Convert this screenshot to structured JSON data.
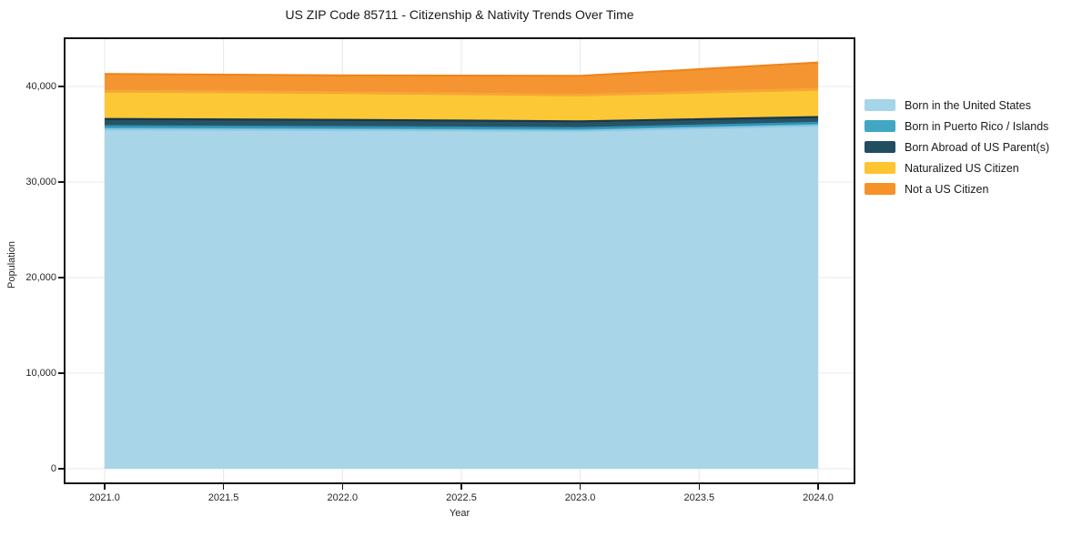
{
  "title": "US ZIP Code 85711 - Citizenship & Nativity Trends Over Time",
  "chart_data": {
    "type": "area",
    "stacked": true,
    "title": "US ZIP Code 85711 - Citizenship & Nativity Trends Over Time",
    "xlabel": "Year",
    "ylabel": "Population",
    "x": [
      2021,
      2022,
      2023,
      2024
    ],
    "series": [
      {
        "name": "Born in the United States",
        "values": [
          35500,
          35450,
          35350,
          35900
        ],
        "color": "#a6d4e8",
        "edge_color": "#8fc8e2"
      },
      {
        "name": "Born in Puerto Rico / Islands",
        "values": [
          350,
          300,
          300,
          300
        ],
        "color": "#41a6c4",
        "edge_color": "#2e93b5"
      },
      {
        "name": "Born Abroad of US Parent(s)",
        "values": [
          750,
          750,
          700,
          600
        ],
        "color": "#214d60",
        "edge_color": "#16384a"
      },
      {
        "name": "Naturalized US Citizen",
        "values": [
          2900,
          2850,
          2750,
          2900
        ],
        "color": "#fdc630",
        "edge_color": "#f7a637"
      },
      {
        "name": "Not a US Citizen",
        "values": [
          1800,
          1800,
          2000,
          2800
        ],
        "color": "#f5922a",
        "edge_color": "#ee861c"
      }
    ],
    "totals": [
      41300,
      41150,
      41100,
      42500
    ],
    "xlim": [
      2020.828,
      2024.157
    ],
    "ylim": [
      -1620,
      45142
    ],
    "xticks": {
      "values": [
        2021.0,
        2021.5,
        2022.0,
        2022.5,
        2023.0,
        2023.5,
        2024.0
      ],
      "labels": [
        "2021.0",
        "2021.5",
        "2022.0",
        "2022.5",
        "2023.0",
        "2023.5",
        "2024.0"
      ]
    },
    "yticks": {
      "values": [
        0,
        10000,
        20000,
        30000,
        40000
      ],
      "labels": [
        "0",
        "10,000",
        "20,000",
        "30,000",
        "40,000"
      ]
    },
    "grid": true,
    "grid_color": "#e8e8e8",
    "spine_color": "#151515",
    "legend_position": "right"
  }
}
